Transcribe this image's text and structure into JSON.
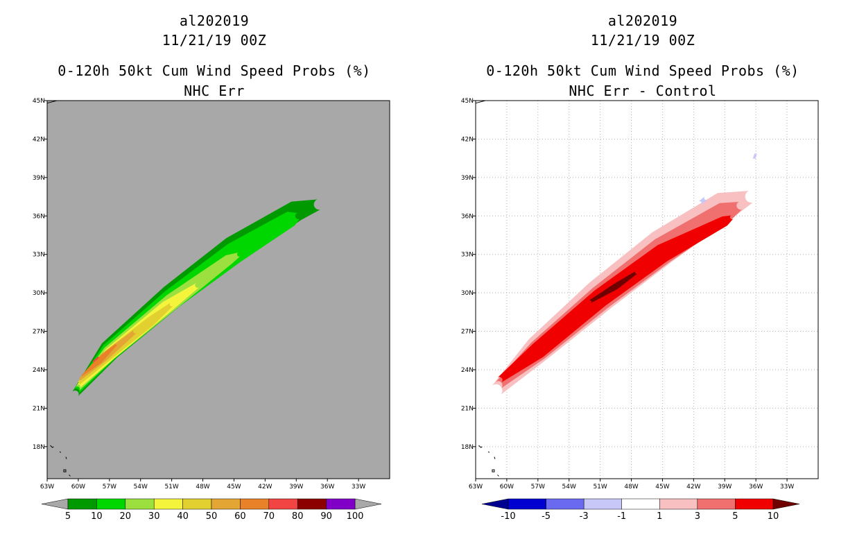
{
  "chart_data": [
    {
      "type": "heatmap",
      "storm": "al202019",
      "datetime": "11/21/19 00Z",
      "title": "0-120h 50kt Cum Wind Speed Probs (%)",
      "subtitle": "NHC Err",
      "x_ticks": [
        "63W",
        "60W",
        "57W",
        "54W",
        "51W",
        "48W",
        "45W",
        "42W",
        "39W",
        "36W",
        "33W"
      ],
      "y_ticks": [
        "18N",
        "21N",
        "24N",
        "27N",
        "30N",
        "33N",
        "36N",
        "39N",
        "42N",
        "45N"
      ],
      "xlim": [
        -63,
        -30
      ],
      "ylim": [
        15.5,
        45
      ],
      "background": "#a8a8a8",
      "grid": false,
      "colorbar": {
        "labels": [
          "5",
          "10",
          "20",
          "30",
          "40",
          "50",
          "60",
          "70",
          "80",
          "90",
          "100"
        ],
        "colors": [
          "#009a00",
          "#00d700",
          "#9be03e",
          "#f4f43c",
          "#e1d02f",
          "#e3a634",
          "#e88128",
          "#f14443",
          "#8c0000",
          "#8000c8"
        ],
        "end_color": "#a8a8a8"
      },
      "contours": [
        {
          "level": 5,
          "color": "#009a00",
          "track": [
            [
              -60.3,
              22.1
            ],
            [
              -57,
              25.5
            ],
            [
              -51,
              29.7
            ],
            [
              -45,
              33.4
            ],
            [
              -39,
              36.4
            ],
            [
              -36.8,
              36.9
            ]
          ],
          "halfwidth": [
            0.35,
            1.0,
            1.2,
            1.3,
            1.0,
            0.5
          ]
        },
        {
          "level": 10,
          "color": "#00d700",
          "track": [
            [
              -60.2,
              22.3
            ],
            [
              -57,
              25.4
            ],
            [
              -51,
              29.5
            ],
            [
              -45,
              33.1
            ],
            [
              -39.5,
              35.8
            ],
            [
              -38.8,
              36.0
            ]
          ],
          "halfwidth": [
            0.3,
            0.85,
            1.0,
            1.05,
            0.75,
            0.3
          ]
        },
        {
          "level": 20,
          "color": "#9be03e",
          "track": [
            [
              -60.1,
              22.5
            ],
            [
              -57,
              25.3
            ],
            [
              -51,
              29.3
            ],
            [
              -45.5,
              32.6
            ],
            [
              -44.5,
              33.0
            ]
          ],
          "halfwidth": [
            0.25,
            0.7,
            0.8,
            0.5,
            0.2
          ]
        },
        {
          "level": 30,
          "color": "#f4f43c",
          "track": [
            [
              -60,
              22.7
            ],
            [
              -57,
              25.2
            ],
            [
              -51.5,
              28.9
            ],
            [
              -48.5,
              30.6
            ]
          ],
          "halfwidth": [
            0.2,
            0.6,
            0.6,
            0.25
          ]
        },
        {
          "level": 40,
          "color": "#e1d02f",
          "track": [
            [
              -60,
              22.9
            ],
            [
              -57.5,
              24.9
            ],
            [
              -53,
              27.8
            ],
            [
              -51,
              29.1
            ]
          ],
          "halfwidth": [
            0.15,
            0.5,
            0.45,
            0.2
          ]
        },
        {
          "level": 50,
          "color": "#e3a634",
          "track": [
            [
              -59.9,
              23.2
            ],
            [
              -57.5,
              25.0
            ],
            [
              -54.5,
              27.0
            ]
          ],
          "halfwidth": [
            0.1,
            0.4,
            0.2
          ]
        },
        {
          "level": 60,
          "color": "#e88128",
          "track": [
            [
              -59.7,
              23.5
            ],
            [
              -58,
              24.7
            ],
            [
              -56.3,
              26.0
            ]
          ],
          "halfwidth": [
            0.05,
            0.3,
            0.1
          ]
        },
        {
          "level": 70,
          "color": "#f14443",
          "track": [
            [
              -58.6,
              24.6
            ],
            [
              -58.0,
              25.0
            ]
          ],
          "halfwidth": [
            0.08,
            0.08
          ]
        }
      ]
    },
    {
      "type": "heatmap",
      "storm": "al202019",
      "datetime": "11/21/19 00Z",
      "title": "0-120h 50kt Cum Wind Speed Probs (%)",
      "subtitle": "NHC Err - Control",
      "x_ticks": [
        "63W",
        "60W",
        "57W",
        "54W",
        "51W",
        "48W",
        "45W",
        "42W",
        "39W",
        "36W",
        "33W"
      ],
      "y_ticks": [
        "18N",
        "21N",
        "24N",
        "27N",
        "30N",
        "33N",
        "36N",
        "39N",
        "42N",
        "45N"
      ],
      "xlim": [
        -63,
        -30
      ],
      "ylim": [
        15.5,
        45
      ],
      "background": "#ffffff",
      "grid": true,
      "colorbar": {
        "labels": [
          "-10",
          "-5",
          "-3",
          "-1",
          "1",
          "3",
          "5",
          "10"
        ],
        "colors": [
          "#0000d0",
          "#6a6af0",
          "#c8c8f8",
          "#ffffff",
          "#f8c0c0",
          "#f07070",
          "#f00000"
        ],
        "end_left": "#000090",
        "end_right": "#700000"
      },
      "contours": [
        {
          "level": 1,
          "color": "#f8c0c0",
          "track": [
            [
              -61,
              22.4
            ],
            [
              -57,
              25.6
            ],
            [
              -51,
              29.8
            ],
            [
              -45,
              33.6
            ],
            [
              -39,
              36.8
            ],
            [
              -36.5,
              37.5
            ]
          ],
          "halfwidth": [
            0.6,
            1.3,
            1.6,
            1.7,
            1.4,
            0.6
          ]
        },
        {
          "level": 3,
          "color": "#f07070",
          "track": [
            [
              -60.8,
              22.8
            ],
            [
              -57,
              25.5
            ],
            [
              -51,
              29.6
            ],
            [
              -45,
              33.3
            ],
            [
              -39,
              36.3
            ],
            [
              -37.5,
              36.8
            ]
          ],
          "halfwidth": [
            0.4,
            1.0,
            1.2,
            1.3,
            1.0,
            0.4
          ]
        },
        {
          "level": 5,
          "color": "#f00000",
          "track": [
            [
              -60.7,
              23.2
            ],
            [
              -57,
              25.5
            ],
            [
              -51,
              29.6
            ],
            [
              -45,
              33.1
            ],
            [
              -39,
              35.6
            ],
            [
              -38.3,
              35.9
            ]
          ],
          "halfwidth": [
            0.3,
            0.8,
            0.9,
            0.9,
            0.5,
            0.2
          ]
        },
        {
          "level": 10,
          "color": "#700000",
          "track": [
            [
              -52,
              29.3
            ],
            [
              -49.5,
              30.5
            ],
            [
              -47.5,
              31.6
            ]
          ],
          "halfwidth": [
            0.15,
            0.3,
            0.15
          ]
        },
        {
          "level": -3,
          "color": "#c8c8f8",
          "track": [
            [
              -41.4,
              37.0
            ],
            [
              -40.8,
              37.4
            ]
          ],
          "halfwidth": [
            0.2,
            0.2
          ]
        },
        {
          "level": -3,
          "color": "#c8c8f8",
          "track": [
            [
              -36.2,
              40.4
            ],
            [
              -36.0,
              40.9
            ]
          ],
          "halfwidth": [
            0.12,
            0.12
          ]
        }
      ]
    }
  ]
}
